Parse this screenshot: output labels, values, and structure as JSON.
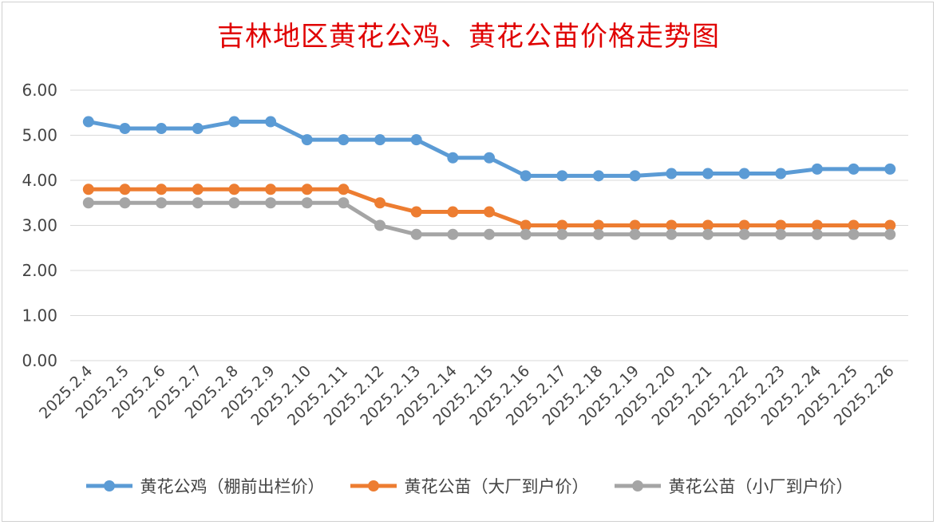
{
  "chart_data": {
    "type": "line",
    "title": "吉林地区黄花公鸡、黄花公苗价格走势图",
    "categories": [
      "2025.2.4",
      "2025.2.5",
      "2025.2.6",
      "2025.2.7",
      "2025.2.8",
      "2025.2.9",
      "2025.2.10",
      "2025.2.11",
      "2025.2.12",
      "2025.2.13",
      "2025.2.14",
      "2025.2.15",
      "2025.2.16",
      "2025.2.17",
      "2025.2.18",
      "2025.2.19",
      "2025.2.20",
      "2025.2.21",
      "2025.2.22",
      "2025.2.23",
      "2025.2.24",
      "2025.2.25",
      "2025.2.26"
    ],
    "y_ticks": [
      "0.00",
      "1.00",
      "2.00",
      "3.00",
      "4.00",
      "5.00",
      "6.00"
    ],
    "ylim": [
      0,
      6
    ],
    "grid": true,
    "legend_position": "bottom",
    "series": [
      {
        "name": "黄花公鸡（棚前出栏价）",
        "color": "#5b9bd5",
        "values": [
          5.3,
          5.15,
          5.15,
          5.15,
          5.3,
          5.3,
          4.9,
          4.9,
          4.9,
          4.9,
          4.5,
          4.5,
          4.1,
          4.1,
          4.1,
          4.1,
          4.15,
          4.15,
          4.15,
          4.15,
          4.25,
          4.25,
          4.25
        ]
      },
      {
        "name": "黄花公苗（大厂到户价）",
        "color": "#ed7d31",
        "values": [
          3.8,
          3.8,
          3.8,
          3.8,
          3.8,
          3.8,
          3.8,
          3.8,
          3.5,
          3.3,
          3.3,
          3.3,
          3.0,
          3.0,
          3.0,
          3.0,
          3.0,
          3.0,
          3.0,
          3.0,
          3.0,
          3.0,
          3.0
        ]
      },
      {
        "name": "黄花公苗（小厂到户价）",
        "color": "#a5a5a5",
        "values": [
          3.5,
          3.5,
          3.5,
          3.5,
          3.5,
          3.5,
          3.5,
          3.5,
          3.0,
          2.8,
          2.8,
          2.8,
          2.8,
          2.8,
          2.8,
          2.8,
          2.8,
          2.8,
          2.8,
          2.8,
          2.8,
          2.8,
          2.8
        ]
      }
    ]
  }
}
